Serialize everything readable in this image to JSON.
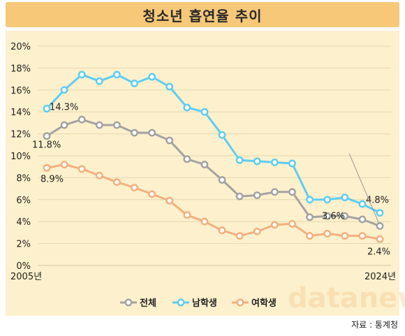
{
  "title": "청소년 흡연율 추이",
  "source": "자료 : 통계청",
  "watermark": "datanews",
  "chart_data": {
    "type": "line",
    "x": [
      2005,
      2006,
      2007,
      2008,
      2009,
      2010,
      2011,
      2012,
      2013,
      2014,
      2015,
      2016,
      2017,
      2018,
      2019,
      2020,
      2021,
      2022,
      2023,
      2024
    ],
    "x_tick_labels": {
      "first": "2005년",
      "last": "2024년"
    },
    "y_ticks": [
      "0%",
      "2%",
      "4%",
      "6%",
      "8%",
      "10%",
      "12%",
      "14%",
      "16%",
      "18%",
      "20%"
    ],
    "ylim": [
      0,
      20
    ],
    "grid": "horizontal",
    "legend_position": "bottom",
    "series": [
      {
        "name": "전체",
        "color": "#a3a3a3",
        "values": [
          11.8,
          12.8,
          13.3,
          12.8,
          12.8,
          12.1,
          12.1,
          11.4,
          9.7,
          9.2,
          7.8,
          6.3,
          6.4,
          6.7,
          6.7,
          4.4,
          4.5,
          4.5,
          4.2,
          3.6
        ]
      },
      {
        "name": "남학생",
        "color": "#5fcdf2",
        "values": [
          14.3,
          16.0,
          17.4,
          16.8,
          17.4,
          16.6,
          17.2,
          16.3,
          14.4,
          14.0,
          11.9,
          9.6,
          9.5,
          9.4,
          9.3,
          6.0,
          6.0,
          6.2,
          5.6,
          4.8
        ]
      },
      {
        "name": "여학생",
        "color": "#f2b07e",
        "values": [
          8.9,
          9.2,
          8.8,
          8.2,
          7.6,
          7.1,
          6.5,
          5.9,
          4.6,
          4.0,
          3.2,
          2.7,
          3.1,
          3.7,
          3.8,
          2.7,
          2.9,
          2.7,
          2.7,
          2.4
        ]
      }
    ],
    "annotations": [
      {
        "series": 1,
        "index": 0,
        "text": "14.3%"
      },
      {
        "series": 0,
        "index": 0,
        "text": "11.8%"
      },
      {
        "series": 2,
        "index": 0,
        "text": "8.9%"
      },
      {
        "series": 0,
        "index": 19,
        "text": "3.6%"
      },
      {
        "series": 1,
        "index": 19,
        "text": "4.8%"
      },
      {
        "series": 2,
        "index": 19,
        "text": "2.4%"
      }
    ]
  }
}
